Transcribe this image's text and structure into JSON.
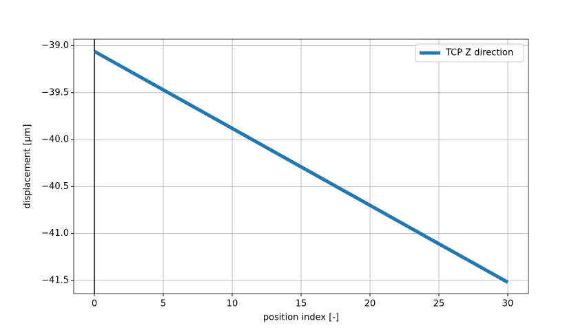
{
  "chart_data": {
    "type": "line",
    "xlabel": "position index [-]",
    "ylabel": "displacement [μm]",
    "x": [
      0,
      30
    ],
    "series": [
      {
        "name": "TCP Z direction",
        "color": "#1f77b4",
        "values": [
          -39.06,
          -41.52
        ]
      }
    ],
    "xlim": [
      -1.5,
      31.5
    ],
    "ylim": [
      -41.64,
      -38.93
    ],
    "xticks": [
      0,
      5,
      10,
      15,
      20,
      25,
      30
    ],
    "yticks": [
      {
        "value": -41.5,
        "label": "−41.5"
      },
      {
        "value": -41,
        "label": "−41.0"
      },
      {
        "value": -40.5,
        "label": "−40.5"
      },
      {
        "value": -40,
        "label": "−40.0"
      },
      {
        "value": -39.5,
        "label": "−39.5"
      },
      {
        "value": -39,
        "label": "−39.0"
      }
    ],
    "vlines": [
      0
    ],
    "grid": true,
    "legend": "upper-right"
  }
}
